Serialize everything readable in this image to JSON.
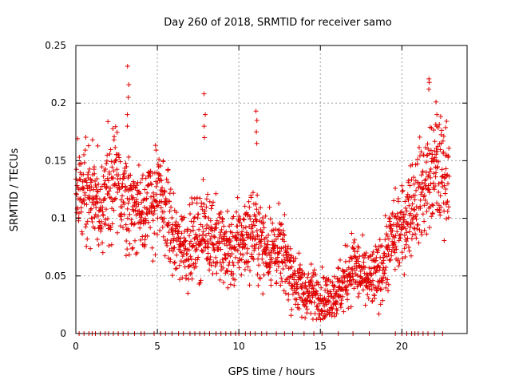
{
  "chart_data": {
    "type": "scatter",
    "title": "Day 260 of 2018, SRMTID for receiver samo",
    "xlabel": "GPS time / hours",
    "ylabel": "SRMTID / TECUs",
    "xlim": [
      0,
      24
    ],
    "ylim": [
      0,
      0.25
    ],
    "xticks": [
      0,
      5,
      10,
      15,
      20
    ],
    "yticks": [
      0,
      0.05,
      0.1,
      0.15,
      0.2,
      0.25
    ],
    "xtick_labels": [
      "0",
      "5",
      "10",
      "15",
      "20"
    ],
    "ytick_labels": [
      "0",
      "0.05",
      "0.1",
      "0.15",
      "0.2",
      "0.25"
    ],
    "grid": true,
    "marker": "+",
    "series_color": "#e00000",
    "trend": {
      "hours": [
        0,
        0.5,
        1,
        1.5,
        2,
        2.5,
        3,
        3.5,
        4,
        4.5,
        5,
        5.5,
        6,
        6.5,
        7,
        7.5,
        8,
        8.5,
        9,
        9.5,
        10,
        10.5,
        11,
        11.5,
        12,
        12.5,
        13,
        13.5,
        14,
        14.5,
        15,
        15.5,
        16,
        16.5,
        17,
        17.5,
        18,
        18.5,
        19,
        19.5,
        20,
        20.5,
        21,
        21.5,
        22,
        22.5,
        22.9
      ],
      "srmtid": [
        0.12,
        0.13,
        0.12,
        0.11,
        0.13,
        0.13,
        0.12,
        0.11,
        0.11,
        0.11,
        0.12,
        0.11,
        0.08,
        0.08,
        0.075,
        0.085,
        0.09,
        0.085,
        0.075,
        0.07,
        0.08,
        0.085,
        0.09,
        0.075,
        0.075,
        0.07,
        0.06,
        0.045,
        0.035,
        0.035,
        0.03,
        0.03,
        0.035,
        0.045,
        0.06,
        0.05,
        0.045,
        0.05,
        0.065,
        0.085,
        0.09,
        0.11,
        0.12,
        0.13,
        0.14,
        0.14,
        0.14
      ]
    },
    "spikes": [
      {
        "hour": 3.2,
        "values": [
          0.232,
          0.216,
          0.205,
          0.19,
          0.18
        ]
      },
      {
        "hour": 7.9,
        "values": [
          0.208,
          0.19,
          0.18,
          0.17
        ]
      },
      {
        "hour": 11.1,
        "values": [
          0.193,
          0.185,
          0.175,
          0.165
        ]
      },
      {
        "hour": 21.7,
        "values": [
          0.221,
          0.218,
          0.212
        ]
      },
      {
        "hour": 22.1,
        "values": [
          0.201,
          0.19,
          0.18
        ]
      }
    ],
    "zero_markers_hours": [
      0.2,
      0.5,
      0.8,
      1.0,
      1.2,
      1.5,
      1.8,
      2.0,
      2.3,
      2.6,
      2.9,
      3.2,
      3.6,
      4.0,
      4.2,
      4.8,
      5.2,
      5.5,
      5.9,
      6.3,
      6.6,
      7.0,
      7.3,
      7.6,
      7.9,
      8.2,
      8.6,
      8.9,
      9.2,
      9.5,
      9.8,
      10.0,
      10.4,
      10.7,
      11.0,
      11.4,
      11.7,
      12.3,
      12.8,
      13.3,
      14.0,
      14.6,
      15.1,
      16.1,
      17.0,
      18.0,
      19.6,
      20.0,
      20.3,
      20.6,
      20.8,
      21.0,
      21.3,
      21.6,
      22.0,
      22.5
    ]
  }
}
